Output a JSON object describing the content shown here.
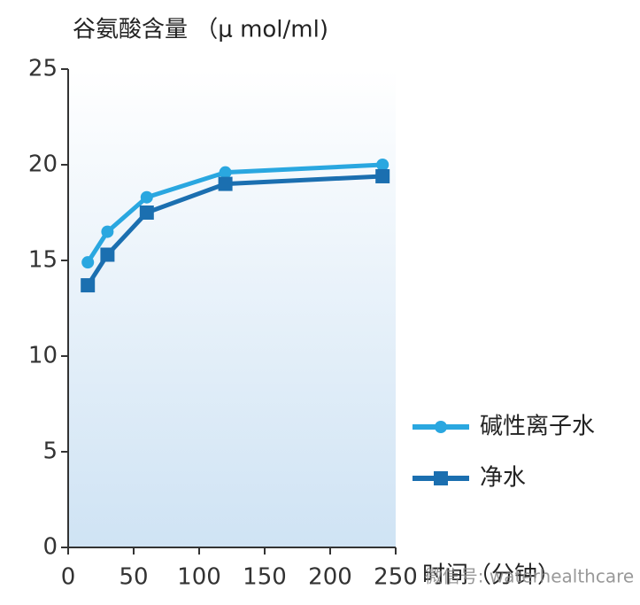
{
  "chart_data": {
    "type": "line",
    "title": "谷氨酸含量 （μ mol/ml)",
    "x_label": "时间（分钟）",
    "watermark": "微信号: waterhealthcare",
    "x": [
      15,
      30,
      60,
      120,
      240
    ],
    "series": [
      {
        "name": "碱性离子水",
        "color": "#2aa7e0",
        "marker": "circle",
        "values": [
          14.9,
          16.5,
          18.3,
          19.6,
          20.0
        ]
      },
      {
        "name": "净水",
        "color": "#1b6fb0",
        "marker": "square",
        "values": [
          13.7,
          15.3,
          17.5,
          19.0,
          19.4
        ]
      }
    ],
    "xlim": [
      0,
      250
    ],
    "xticks": [
      0,
      50,
      100,
      150,
      200,
      250
    ],
    "ylim": [
      0,
      25
    ],
    "yticks": [
      0,
      5,
      10,
      15,
      20,
      25
    ],
    "grid": false
  }
}
